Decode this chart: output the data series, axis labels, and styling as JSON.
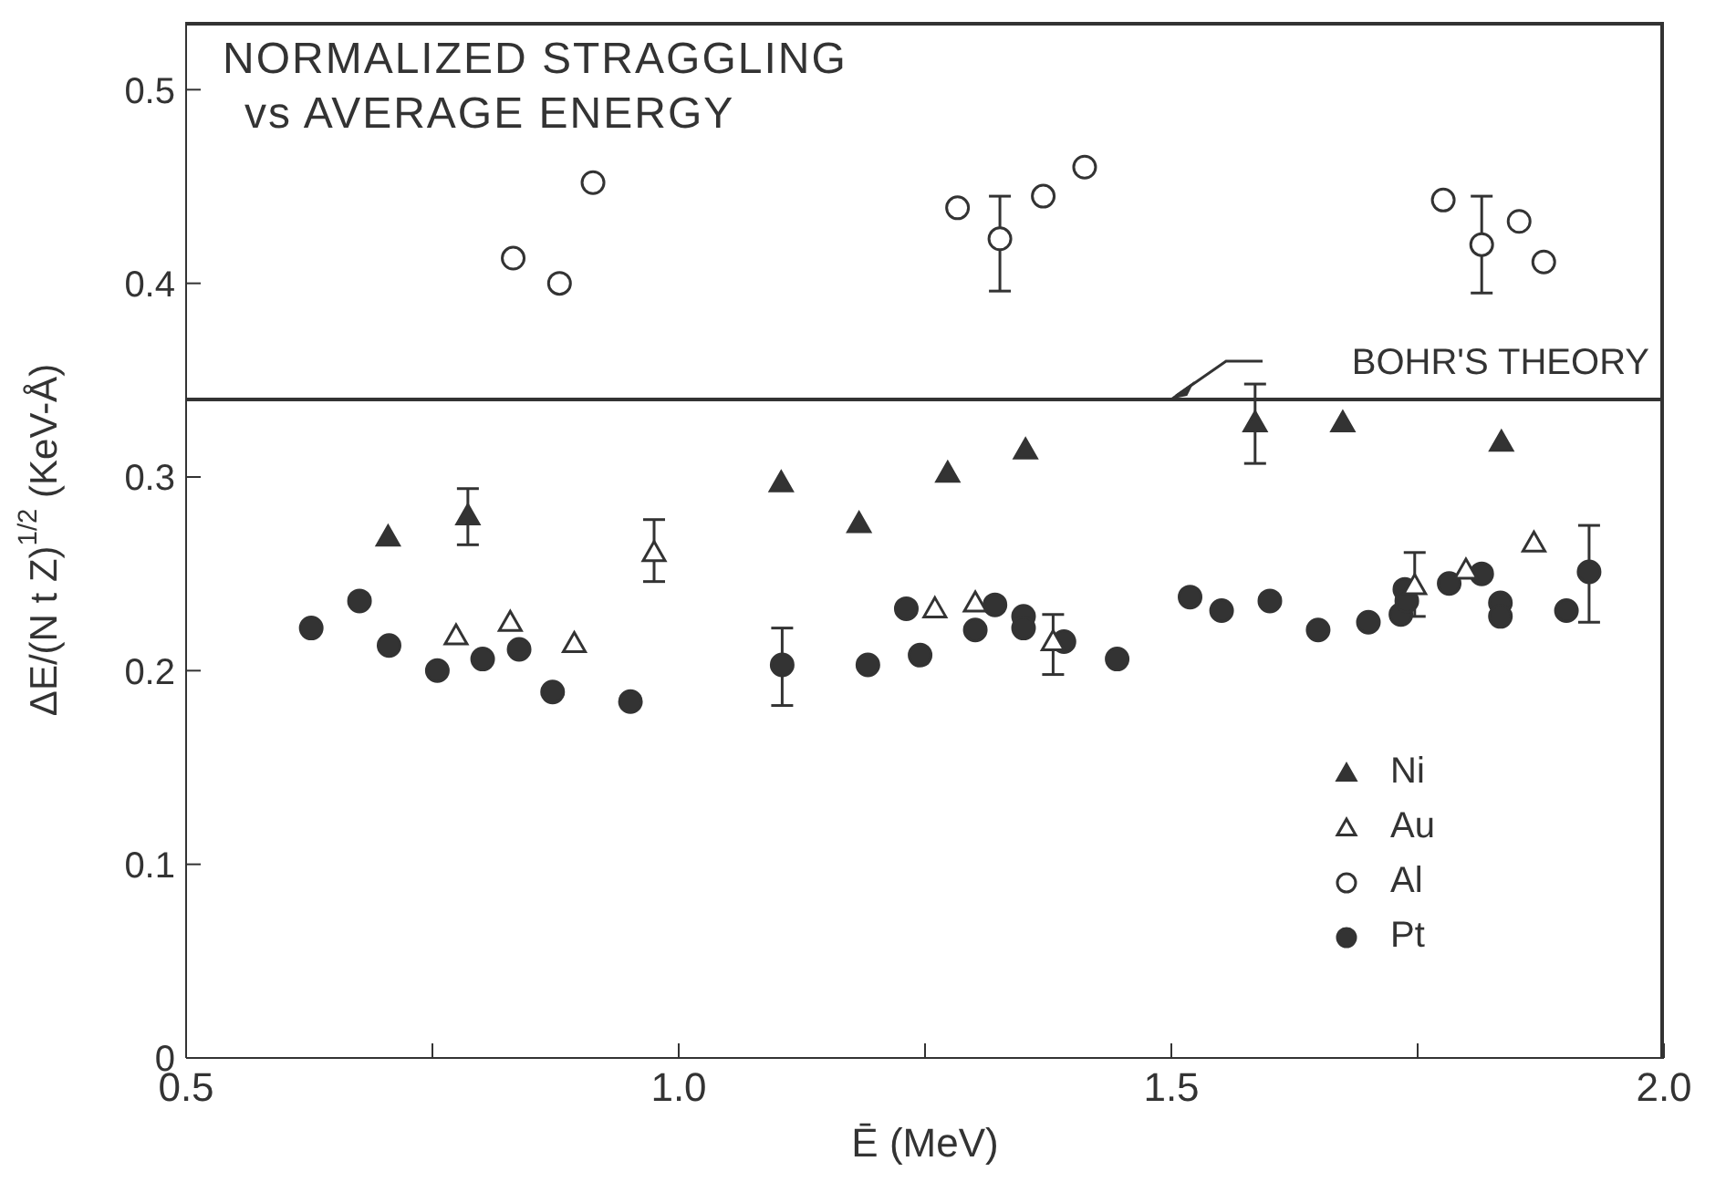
{
  "chart_data": {
    "type": "scatter",
    "title": "NORMALIZED STRAGGLING\nvs AVERAGE ENERGY",
    "xlabel": "Ē (MeV)",
    "ylabel": "ΔE/(N t Z)$^{1/2}$ (KeV-Å)",
    "xlim": [
      0.5,
      2.0
    ],
    "xticks": [
      {
        "value": 0.5,
        "label": "0.5"
      },
      {
        "value": 0.75,
        "label": null
      },
      {
        "value": 1.0,
        "label": "1.0"
      },
      {
        "value": 1.25,
        "label": null
      },
      {
        "value": 1.5,
        "label": "1.5"
      },
      {
        "value": 1.75,
        "label": null
      },
      {
        "value": 2.0,
        "label": "2.0"
      }
    ],
    "ylim": [
      0,
      0.535
    ],
    "yticks": [
      0,
      0.1,
      0.2,
      0.3,
      0.4,
      0.5
    ],
    "grid": false,
    "legend": "bottom right",
    "ref_lines": [
      {
        "axis": "y",
        "value": 0.34,
        "label": "BOHR'S THEORY",
        "color": "#333333"
      }
    ],
    "series": [
      {
        "name": "Ni",
        "color": "#333333",
        "marker": "triangle",
        "x": [
          0.705,
          0.786,
          1.104,
          1.183,
          1.273,
          1.352,
          1.585,
          1.674,
          1.835
        ],
        "values": [
          0.269,
          0.28,
          0.297,
          0.276,
          0.302,
          0.314,
          0.328,
          0.328,
          0.318
        ],
        "errors": [
          null,
          [
            0.265,
            0.294
          ],
          null,
          null,
          null,
          null,
          [
            0.307,
            0.348
          ],
          null,
          null
        ]
      },
      {
        "name": "Au",
        "color": "#ffffff",
        "marker": "triangle",
        "x": [
          0.774,
          0.829,
          0.894,
          0.975,
          1.26,
          1.301,
          1.38,
          1.747,
          1.799,
          1.868
        ],
        "values": [
          0.218,
          0.225,
          0.214,
          0.261,
          0.232,
          0.235,
          0.215,
          0.244,
          0.252,
          0.266
        ],
        "errors": [
          null,
          null,
          null,
          [
            0.246,
            0.278
          ],
          null,
          null,
          [
            0.198,
            0.229
          ],
          [
            0.228,
            0.261
          ],
          null,
          null
        ]
      },
      {
        "name": "Al",
        "color": "#ffffff",
        "marker": "circle",
        "x": [
          0.832,
          0.879,
          0.913,
          1.283,
          1.326,
          1.37,
          1.412,
          1.776,
          1.815,
          1.853,
          1.878
        ],
        "values": [
          0.413,
          0.4,
          0.452,
          0.439,
          0.423,
          0.445,
          0.46,
          0.443,
          0.42,
          0.432,
          0.411
        ],
        "errors": [
          null,
          null,
          null,
          null,
          [
            0.396,
            0.445
          ],
          null,
          null,
          null,
          [
            0.395,
            0.445
          ],
          null,
          null
        ]
      },
      {
        "name": "Pt",
        "color": "#333333",
        "marker": "circle",
        "x": [
          0.627,
          0.676,
          0.706,
          0.755,
          0.801,
          0.838,
          0.872,
          0.951,
          1.105,
          1.192,
          1.231,
          1.245,
          1.301,
          1.321,
          1.35,
          1.35,
          1.391,
          1.445,
          1.519,
          1.551,
          1.6,
          1.649,
          1.7,
          1.733,
          1.737,
          1.739,
          1.782,
          1.815,
          1.834,
          1.834,
          1.901,
          1.924
        ],
        "values": [
          0.222,
          0.236,
          0.213,
          0.2,
          0.206,
          0.211,
          0.189,
          0.184,
          0.203,
          0.203,
          0.232,
          0.208,
          0.221,
          0.234,
          0.228,
          0.222,
          0.215,
          0.206,
          0.238,
          0.231,
          0.236,
          0.221,
          0.225,
          0.229,
          0.242,
          0.236,
          0.245,
          0.25,
          0.235,
          0.228,
          0.231,
          0.251
        ],
        "errors": [
          null,
          null,
          null,
          null,
          null,
          null,
          null,
          null,
          [
            0.182,
            0.222
          ],
          null,
          null,
          null,
          null,
          null,
          null,
          null,
          null,
          null,
          null,
          null,
          null,
          null,
          null,
          null,
          null,
          null,
          null,
          null,
          null,
          null,
          null,
          [
            0.225,
            0.275
          ]
        ]
      }
    ]
  }
}
